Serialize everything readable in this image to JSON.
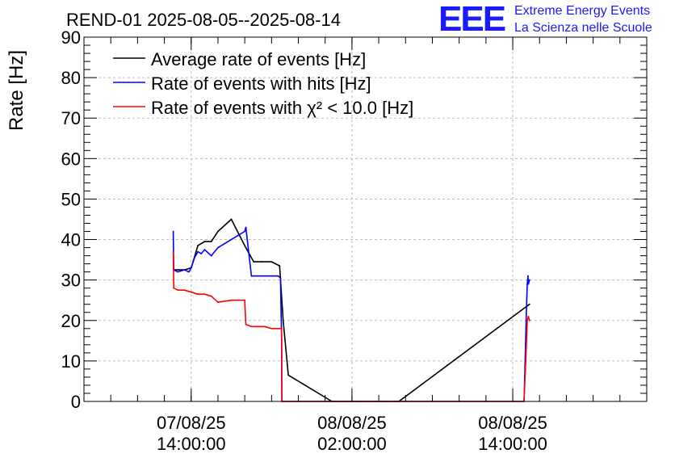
{
  "header": {
    "title": "REND-01 2025-08-05--2025-08-14",
    "logo_mark": "EEE",
    "logo_line1": "Extreme Energy Events",
    "logo_line2": "La Scienza nelle Scuole",
    "logo_color": "#1a1aff"
  },
  "chart_data": {
    "type": "line",
    "title": "REND-01 2025-08-05--2025-08-14",
    "xlabel": "",
    "ylabel": "Rate [Hz]",
    "ylim": [
      0,
      90
    ],
    "xlim": [
      "2025-08-07 06:00",
      "2025-08-09 00:00"
    ],
    "x_ticks": [
      {
        "x": "2025-08-07 14:00",
        "line1": "07/08/25",
        "line2": "14:00:00"
      },
      {
        "x": "2025-08-08 02:00",
        "line1": "08/08/25",
        "line2": "02:00:00"
      },
      {
        "x": "2025-08-08 14:00",
        "line1": "08/08/25",
        "line2": "14:00:00"
      }
    ],
    "y_ticks": [
      0,
      10,
      20,
      30,
      40,
      50,
      60,
      70,
      80,
      90
    ],
    "grid": true,
    "legend_position": "top-left",
    "series": [
      {
        "name": "Average rate of events [Hz]",
        "color": "#000000",
        "x": [
          "2025-08-07 12:42",
          "2025-08-07 13:00",
          "2025-08-07 13:30",
          "2025-08-07 14:00",
          "2025-08-07 14:30",
          "2025-08-07 15:00",
          "2025-08-07 15:30",
          "2025-08-07 16:00",
          "2025-08-07 17:00",
          "2025-08-07 18:00",
          "2025-08-07 18:40",
          "2025-08-07 19:00",
          "2025-08-07 19:15",
          "2025-08-07 20:00",
          "2025-08-07 20:36",
          "2025-08-07 20:52",
          "2025-08-07 21:15",
          "2025-08-08 00:30",
          "2025-08-08 05:30",
          "2025-08-08 15:15"
        ],
        "y": [
          32.5,
          32.5,
          32.5,
          33,
          38.5,
          39.5,
          39.5,
          42,
          45,
          38.5,
          34.5,
          34.5,
          34.5,
          34.5,
          33.5,
          20,
          6.5,
          0,
          0,
          24
        ]
      },
      {
        "name": "Rate of events with hits [Hz]",
        "color": "#0000ff",
        "x": [
          "2025-08-07 12:40",
          "2025-08-07 12:42",
          "2025-08-07 13:00",
          "2025-08-07 13:30",
          "2025-08-07 13:50",
          "2025-08-07 14:00",
          "2025-08-07 14:15",
          "2025-08-07 14:30",
          "2025-08-07 14:45",
          "2025-08-07 15:00",
          "2025-08-07 15:30",
          "2025-08-07 16:00",
          "2025-08-07 16:30",
          "2025-08-07 17:00",
          "2025-08-07 17:30",
          "2025-08-07 18:00",
          "2025-08-07 18:05",
          "2025-08-07 18:30",
          "2025-08-07 19:00",
          "2025-08-07 19:30",
          "2025-08-07 20:00",
          "2025-08-07 20:30",
          "2025-08-07 20:40",
          "2025-08-07 20:45",
          "2025-08-07 20:46",
          "2025-08-08 14:50",
          "2025-08-08 14:51",
          "2025-08-08 15:00",
          "2025-08-08 15:05",
          "2025-08-08 15:08",
          "2025-08-08 15:10",
          "2025-08-08 15:15"
        ],
        "y": [
          42,
          32.5,
          32,
          32.5,
          32,
          33,
          35.5,
          37,
          36.5,
          37.5,
          36,
          38,
          39,
          40,
          41,
          42,
          43,
          31,
          31,
          31,
          31,
          31,
          30.5,
          15,
          0,
          0,
          1,
          20,
          29,
          31,
          29,
          30
        ]
      },
      {
        "name": "Rate of events with χ² < 10.0 [Hz]",
        "color": "#ff0000",
        "x": [
          "2025-08-07 12:40",
          "2025-08-07 12:42",
          "2025-08-07 13:00",
          "2025-08-07 13:30",
          "2025-08-07 14:00",
          "2025-08-07 14:30",
          "2025-08-07 15:00",
          "2025-08-07 15:30",
          "2025-08-07 16:00",
          "2025-08-07 17:00",
          "2025-08-07 18:00",
          "2025-08-07 18:05",
          "2025-08-07 18:30",
          "2025-08-07 19:00",
          "2025-08-07 19:30",
          "2025-08-07 20:00",
          "2025-08-07 20:30",
          "2025-08-07 20:45",
          "2025-08-07 20:46",
          "2025-08-08 14:50",
          "2025-08-08 14:51",
          "2025-08-08 15:00",
          "2025-08-08 15:05",
          "2025-08-08 15:10",
          "2025-08-08 15:15"
        ],
        "y": [
          37,
          28,
          27.5,
          27.5,
          27,
          26.5,
          26.5,
          26,
          24.5,
          25,
          25,
          19,
          18.5,
          18.5,
          18.5,
          18,
          18,
          18,
          0,
          0,
          1,
          12,
          20,
          21,
          20
        ]
      }
    ]
  }
}
